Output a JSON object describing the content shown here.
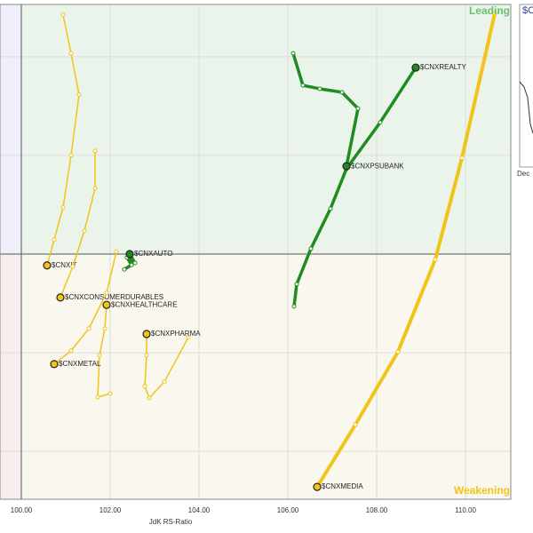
{
  "chart_data": {
    "type": "line",
    "x_label": "JdK RS-Ratio",
    "quadrant_labels": {
      "leading": "Leading",
      "weakening": "Weakening"
    },
    "quadrant_center": [
      100,
      100
    ],
    "xlim": [
      99.52,
      111.02
    ],
    "ylim": [
      95.03,
      105.06
    ],
    "xticks": [
      {
        "value": 100,
        "label": "100.00"
      },
      {
        "value": 102,
        "label": "102.00"
      },
      {
        "value": 104,
        "label": "104.00"
      },
      {
        "value": 106,
        "label": "106.00"
      },
      {
        "value": 108,
        "label": "108.00"
      },
      {
        "value": 110,
        "label": "110.00"
      }
    ],
    "yticks": [
      96,
      98,
      100,
      102,
      104
    ],
    "grid": true,
    "series": [
      {
        "name": "$CNXREALTY",
        "color": "#1e8c1e",
        "x": [
          106.14,
          106.2,
          106.52,
          106.96,
          107.32,
          108.08,
          108.88
        ],
        "values": [
          98.94,
          99.39,
          100.11,
          100.92,
          101.73,
          102.67,
          103.78
        ]
      },
      {
        "name": "$CNXPSUBANK",
        "color": "#1e8c1e",
        "x": [
          106.12,
          106.34,
          106.72,
          107.22,
          107.58,
          107.32
        ],
        "values": [
          104.07,
          103.42,
          103.35,
          103.28,
          102.95,
          101.78
        ]
      },
      {
        "name": "$CNXAUTO",
        "color": "#1e8c1e",
        "x": [
          102.32,
          102.48,
          102.38,
          102.56,
          102.44
        ],
        "values": [
          99.69,
          99.78,
          99.93,
          99.82,
          100
        ]
      },
      {
        "name": "$CNXMEDIA",
        "color": "#f0c419",
        "x": [
          110.66,
          109.92,
          109.32,
          108.48,
          107.52,
          106.66
        ],
        "values": [
          104.88,
          101.95,
          99.89,
          98.02,
          96.54,
          95.28
        ]
      },
      {
        "name": "$CNXIT",
        "color": "#f0c419",
        "x": [
          100.94,
          101.12,
          101.3,
          101.12,
          100.94,
          100.74,
          100.58
        ],
        "values": [
          104.85,
          104.07,
          103.23,
          102,
          100.95,
          100.29,
          99.77
        ]
      },
      {
        "name": "$CNXCONSUMERDURABLES",
        "color": "#f0c419",
        "x": [
          101.66,
          101.66,
          101.42,
          101.16,
          100.88
        ],
        "values": [
          102.09,
          101.33,
          100.47,
          99.75,
          99.12
        ]
      },
      {
        "name": "$CNXHEALTHCARE",
        "color": "#f0c419",
        "x": [
          102,
          101.72,
          101.76,
          101.88,
          101.92
        ],
        "values": [
          97.17,
          97.1,
          97.95,
          98.49,
          98.97
        ]
      },
      {
        "name": "$CNXMETAL",
        "color": "#f0c419",
        "x": [
          102.14,
          101.92,
          101.52,
          101.12,
          100.74
        ],
        "values": [
          100.05,
          99.21,
          98.49,
          98.04,
          97.77
        ]
      },
      {
        "name": "$CNXPHARMA",
        "color": "#f0c419",
        "x": [
          103.76,
          103.22,
          102.88,
          102.78,
          102.82,
          102.82
        ],
        "values": [
          98.31,
          97.41,
          97.08,
          97.32,
          97.95,
          98.38
        ]
      }
    ]
  },
  "inset": {
    "title": "$C",
    "x_label": "Dec"
  }
}
